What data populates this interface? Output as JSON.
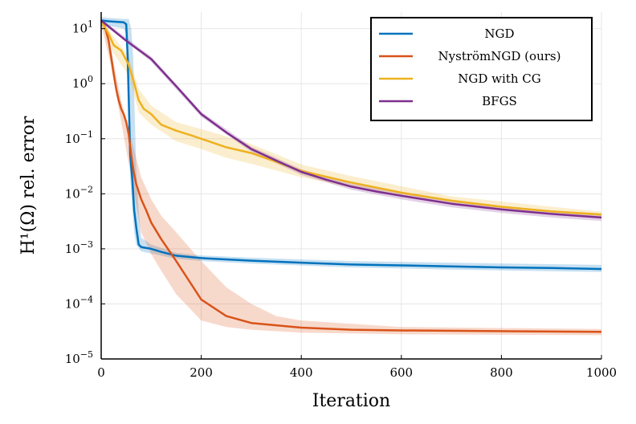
{
  "chart_data": {
    "type": "line",
    "xlabel": "Iteration",
    "ylabel": "H¹(Ω) rel. error",
    "yscale": "log",
    "xlim": [
      0,
      1000
    ],
    "ylim": [
      1e-05,
      20
    ],
    "grid": true,
    "legend_position": "top-right",
    "x_ticks": [
      0,
      200,
      400,
      600,
      800,
      1000
    ],
    "y_ticks": [
      {
        "value": 10,
        "base": "10",
        "exp": "1"
      },
      {
        "value": 1,
        "base": "10",
        "exp": "0"
      },
      {
        "value": 0.1,
        "base": "10",
        "exp": "−1"
      },
      {
        "value": 0.01,
        "base": "10",
        "exp": "−2"
      },
      {
        "value": 0.001,
        "base": "10",
        "exp": "−3"
      },
      {
        "value": 0.0001,
        "base": "10",
        "exp": "−4"
      },
      {
        "value": 1e-05,
        "base": "10",
        "exp": "−5"
      }
    ],
    "series": [
      {
        "name": "NGD",
        "color": "#0072BD",
        "band": true,
        "points": [
          [
            0,
            14
          ],
          [
            20,
            13.5
          ],
          [
            45,
            13
          ],
          [
            50,
            12
          ],
          [
            53,
            3
          ],
          [
            58,
            0.05
          ],
          [
            62,
            0.02
          ],
          [
            66,
            0.005
          ],
          [
            70,
            0.0025
          ],
          [
            75,
            0.0012
          ],
          [
            80,
            0.00108
          ],
          [
            100,
            0.001
          ],
          [
            120,
            0.00088
          ],
          [
            150,
            0.00075
          ],
          [
            200,
            0.00068
          ],
          [
            300,
            0.00061
          ],
          [
            400,
            0.00056
          ],
          [
            500,
            0.00052
          ],
          [
            600,
            0.0005
          ],
          [
            700,
            0.00048
          ],
          [
            800,
            0.00046
          ],
          [
            900,
            0.00045
          ],
          [
            1000,
            0.00043
          ]
        ],
        "band_lower": [
          [
            0,
            11
          ],
          [
            20,
            11
          ],
          [
            45,
            10
          ],
          [
            50,
            8
          ],
          [
            53,
            1
          ],
          [
            58,
            0.02
          ],
          [
            62,
            0.006
          ],
          [
            66,
            0.002
          ],
          [
            70,
            0.0012
          ],
          [
            80,
            0.0009
          ],
          [
            120,
            0.00075
          ],
          [
            150,
            0.00066
          ],
          [
            200,
            0.0006
          ],
          [
            300,
            0.00054
          ],
          [
            500,
            0.00046
          ],
          [
            700,
            0.00042
          ],
          [
            1000,
            0.00038
          ]
        ],
        "band_upper": [
          [
            0,
            16
          ],
          [
            45,
            15
          ],
          [
            55,
            15
          ],
          [
            60,
            10
          ],
          [
            64,
            3
          ],
          [
            67,
            0.3
          ],
          [
            70,
            0.03
          ],
          [
            75,
            0.005
          ],
          [
            80,
            0.0016
          ],
          [
            100,
            0.0012
          ],
          [
            150,
            0.00085
          ],
          [
            200,
            0.00076
          ],
          [
            300,
            0.00069
          ],
          [
            500,
            0.0006
          ],
          [
            700,
            0.00056
          ],
          [
            1000,
            0.00051
          ]
        ]
      },
      {
        "name": "NyströmNGD (ours)",
        "color": "#D95319",
        "band": true,
        "points": [
          [
            0,
            14
          ],
          [
            5,
            12
          ],
          [
            10,
            9
          ],
          [
            15,
            6
          ],
          [
            20,
            3
          ],
          [
            25,
            1.5
          ],
          [
            30,
            0.8
          ],
          [
            35,
            0.5
          ],
          [
            40,
            0.35
          ],
          [
            45,
            0.28
          ],
          [
            50,
            0.2
          ],
          [
            55,
            0.12
          ],
          [
            60,
            0.05
          ],
          [
            65,
            0.025
          ],
          [
            70,
            0.015
          ],
          [
            80,
            0.008
          ],
          [
            90,
            0.005
          ],
          [
            100,
            0.003
          ],
          [
            120,
            0.0015
          ],
          [
            150,
            0.0006
          ],
          [
            200,
            0.00012
          ],
          [
            250,
            6e-05
          ],
          [
            300,
            4.5e-05
          ],
          [
            400,
            3.7e-05
          ],
          [
            500,
            3.4e-05
          ],
          [
            600,
            3.3e-05
          ],
          [
            800,
            3.2e-05
          ],
          [
            1000,
            3.1e-05
          ]
        ],
        "band_lower": [
          [
            0,
            12
          ],
          [
            20,
            2
          ],
          [
            40,
            0.2
          ],
          [
            60,
            0.02
          ],
          [
            80,
            0.002
          ],
          [
            100,
            0.0008
          ],
          [
            120,
            0.0004
          ],
          [
            150,
            0.00015
          ],
          [
            200,
            5e-05
          ],
          [
            250,
            3.8e-05
          ],
          [
            300,
            3.4e-05
          ],
          [
            400,
            3e-05
          ],
          [
            600,
            2.8e-05
          ],
          [
            1000,
            2.7e-05
          ]
        ],
        "band_upper": [
          [
            0,
            16
          ],
          [
            20,
            4
          ],
          [
            40,
            0.5
          ],
          [
            60,
            0.1
          ],
          [
            80,
            0.02
          ],
          [
            100,
            0.008
          ],
          [
            120,
            0.004
          ],
          [
            150,
            0.002
          ],
          [
            200,
            0.0006
          ],
          [
            250,
            0.0002
          ],
          [
            300,
            0.0001
          ],
          [
            350,
            6e-05
          ],
          [
            400,
            5e-05
          ],
          [
            600,
            3.8e-05
          ],
          [
            1000,
            3.5e-05
          ]
        ]
      },
      {
        "name": "NGD with CG",
        "color": "#EDB120",
        "band": true,
        "points": [
          [
            0,
            14
          ],
          [
            15,
            8
          ],
          [
            25,
            5
          ],
          [
            40,
            4
          ],
          [
            55,
            2.2
          ],
          [
            65,
            1.1
          ],
          [
            75,
            0.5
          ],
          [
            85,
            0.35
          ],
          [
            100,
            0.28
          ],
          [
            120,
            0.18
          ],
          [
            150,
            0.14
          ],
          [
            180,
            0.115
          ],
          [
            200,
            0.1
          ],
          [
            250,
            0.07
          ],
          [
            300,
            0.055
          ],
          [
            350,
            0.038
          ],
          [
            400,
            0.026
          ],
          [
            500,
            0.016
          ],
          [
            600,
            0.0105
          ],
          [
            700,
            0.0075
          ],
          [
            800,
            0.0058
          ],
          [
            900,
            0.0048
          ],
          [
            1000,
            0.0042
          ]
        ],
        "band_lower": [
          [
            0,
            12
          ],
          [
            25,
            3.5
          ],
          [
            55,
            1.4
          ],
          [
            75,
            0.3
          ],
          [
            100,
            0.18
          ],
          [
            150,
            0.09
          ],
          [
            200,
            0.065
          ],
          [
            250,
            0.045
          ],
          [
            300,
            0.035
          ],
          [
            400,
            0.02
          ],
          [
            500,
            0.013
          ],
          [
            700,
            0.0065
          ],
          [
            1000,
            0.0038
          ]
        ],
        "band_upper": [
          [
            0,
            16
          ],
          [
            25,
            7
          ],
          [
            55,
            3.2
          ],
          [
            75,
            0.8
          ],
          [
            100,
            0.4
          ],
          [
            150,
            0.2
          ],
          [
            200,
            0.15
          ],
          [
            250,
            0.11
          ],
          [
            300,
            0.08
          ],
          [
            400,
            0.034
          ],
          [
            500,
            0.021
          ],
          [
            700,
            0.009
          ],
          [
            1000,
            0.0047
          ]
        ]
      },
      {
        "name": "BFGS",
        "color": "#7E2F8E",
        "band": true,
        "points": [
          [
            0,
            14
          ],
          [
            50,
            6
          ],
          [
            100,
            2.8
          ],
          [
            150,
            0.9
          ],
          [
            200,
            0.28
          ],
          [
            250,
            0.13
          ],
          [
            300,
            0.065
          ],
          [
            350,
            0.04
          ],
          [
            400,
            0.025
          ],
          [
            450,
            0.018
          ],
          [
            500,
            0.0135
          ],
          [
            550,
            0.011
          ],
          [
            600,
            0.0092
          ],
          [
            700,
            0.0066
          ],
          [
            800,
            0.0052
          ],
          [
            900,
            0.0043
          ],
          [
            1000,
            0.0037
          ]
        ],
        "band_lower": [
          [
            0,
            13
          ],
          [
            100,
            2.5
          ],
          [
            200,
            0.25
          ],
          [
            300,
            0.058
          ],
          [
            400,
            0.022
          ],
          [
            500,
            0.0118
          ],
          [
            600,
            0.0079
          ],
          [
            700,
            0.0057
          ],
          [
            800,
            0.0045
          ],
          [
            900,
            0.0037
          ],
          [
            1000,
            0.0032
          ]
        ],
        "band_upper": [
          [
            0,
            15
          ],
          [
            100,
            3.1
          ],
          [
            200,
            0.31
          ],
          [
            300,
            0.072
          ],
          [
            400,
            0.028
          ],
          [
            500,
            0.0152
          ],
          [
            600,
            0.0105
          ],
          [
            700,
            0.0076
          ],
          [
            800,
            0.006
          ],
          [
            900,
            0.005
          ],
          [
            1000,
            0.0043
          ]
        ]
      }
    ]
  }
}
